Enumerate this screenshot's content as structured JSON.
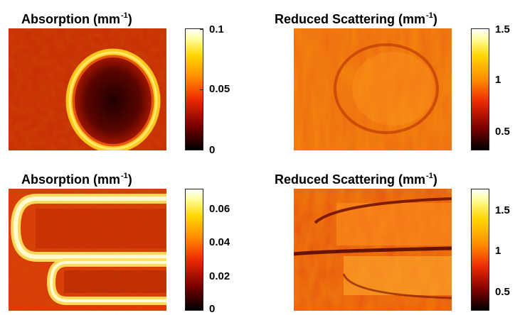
{
  "chart_data": [
    {
      "type": "heatmap",
      "title": "Absorption (mm",
      "title_unit_exp": "-1",
      "title_close": ")",
      "colormap": "hot",
      "colorbar": {
        "min": 0,
        "max": 0.1,
        "ticks": [
          "0.1",
          "0.05",
          "0"
        ],
        "tick_values": [
          0.1,
          0.05,
          0
        ]
      },
      "background_level": 0.035,
      "feature": "bright elliptical ring with dark interior",
      "ring_level": 0.085,
      "interior_level": 0.012
    },
    {
      "type": "heatmap",
      "title": "Reduced Scattering (mm",
      "title_unit_exp": "-1",
      "title_close": ")",
      "colormap": "hot",
      "colorbar": {
        "min": 0.3,
        "max": 1.55,
        "ticks": [
          "1.5",
          "1",
          "0.5"
        ],
        "tick_values": [
          1.5,
          1,
          0.5
        ]
      },
      "background_level": 1.1,
      "feature": "faint circular region, slightly darker rim"
    },
    {
      "type": "heatmap",
      "title": "Absorption (mm",
      "title_unit_exp": "-1",
      "title_close": ")",
      "colormap": "hot",
      "colorbar": {
        "min": 0,
        "max": 0.07,
        "ticks": [
          "0.06",
          "0.04",
          "0.02",
          "0"
        ],
        "tick_values": [
          0.06,
          0.04,
          0.02,
          0
        ]
      },
      "background_level": 0.03,
      "feature": "bright U-shaped tubes (two stacked loops)",
      "ring_level": 0.068,
      "interior_level": 0.02
    },
    {
      "type": "heatmap",
      "title": "Reduced Scattering (mm",
      "title_unit_exp": "-1",
      "title_close": ")",
      "colormap": "hot",
      "colorbar": {
        "min": 0.3,
        "max": 1.75,
        "ticks": [
          "1.5",
          "1",
          "0.5"
        ],
        "tick_values": [
          1.5,
          1,
          0.5
        ]
      },
      "background_level": 1.1,
      "feature": "two stacked tubes with dark boundaries"
    }
  ]
}
